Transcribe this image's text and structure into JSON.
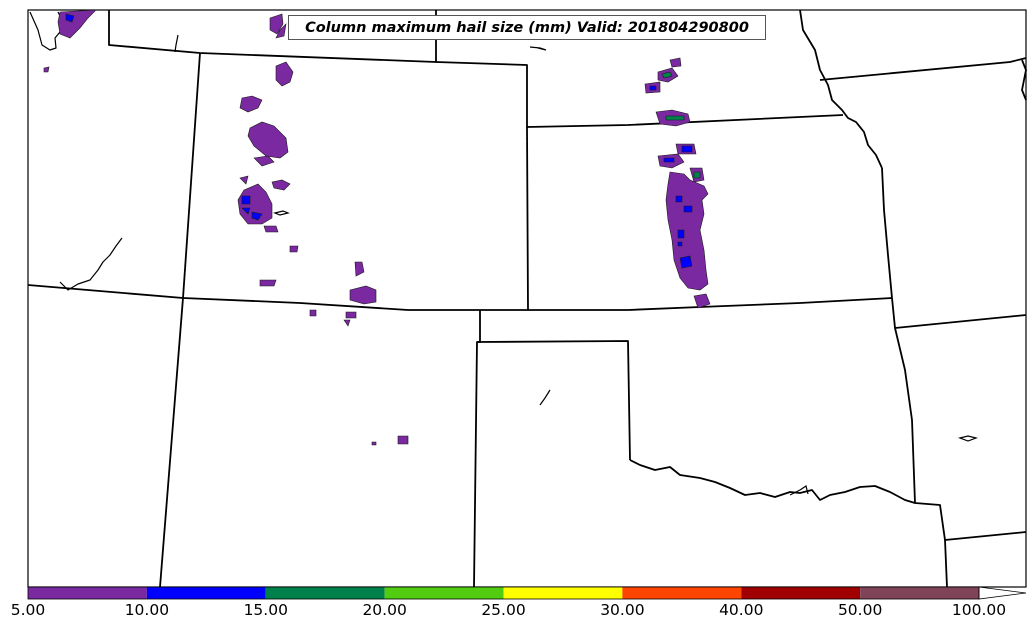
{
  "title": "Column maximum hail size (mm) Valid: 201804290800",
  "colorbar": {
    "bins": [
      {
        "label": "5.00",
        "color": "#7a29a1"
      },
      {
        "label": "10.00",
        "color": "#0000ff"
      },
      {
        "label": "15.00",
        "color": "#00804a"
      },
      {
        "label": "20.00",
        "color": "#52cc10"
      },
      {
        "label": "25.00",
        "color": "#ffff00"
      },
      {
        "label": "30.00",
        "color": "#ff4500"
      },
      {
        "label": "40.00",
        "color": "#a10000"
      },
      {
        "label": "50.00",
        "color": "#804458"
      }
    ],
    "last_label": "100.00",
    "extend_color": "#ffffff"
  },
  "map": {
    "boundary_color": "#000000",
    "hail_colors": {
      "small": "#7a29a1",
      "medium": "#0000ff",
      "large": "#00804a"
    }
  }
}
